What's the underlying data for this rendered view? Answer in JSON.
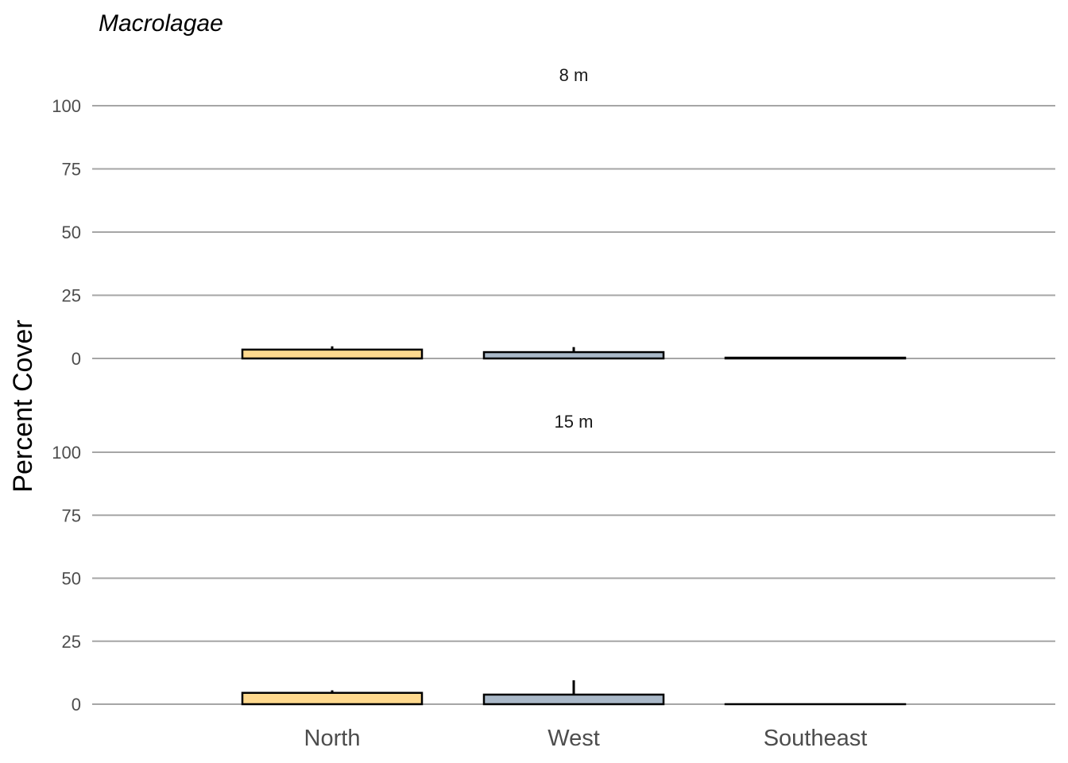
{
  "chart_data": {
    "type": "bar",
    "title": "Macrolagae",
    "ylabel": "Percent Cover",
    "xlabel": "",
    "categories": [
      "North",
      "West",
      "Southeast"
    ],
    "ylim": [
      0,
      100
    ],
    "yticks": [
      0,
      25,
      50,
      75,
      100
    ],
    "grid": true,
    "colors": {
      "North": "#ffd98e",
      "West": "#a9b8c8",
      "Southeast": "#d9d9d9"
    },
    "panels": [
      {
        "label": "8 m",
        "values": [
          3.5,
          2.5,
          0.3
        ],
        "error_upper": [
          4.8,
          4.5,
          0.4
        ]
      },
      {
        "label": "15 m",
        "values": [
          4.5,
          3.8,
          0
        ],
        "error_upper": [
          5.5,
          9.5,
          0
        ]
      }
    ]
  }
}
